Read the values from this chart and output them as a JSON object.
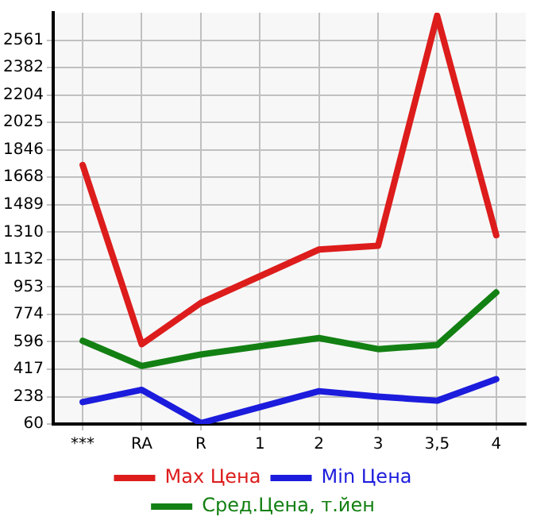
{
  "chart_data": {
    "type": "line",
    "categories": [
      "***",
      "RA",
      "R",
      "1",
      "2",
      "3",
      "3,5",
      "4"
    ],
    "series": [
      {
        "name": "Max Цена",
        "color": "#dd1c1c",
        "values": [
          1748,
          580,
          849,
          null,
          1197,
          1221,
          2721,
          1290
        ]
      },
      {
        "name": "Min Цена",
        "color": "#1c1cdd",
        "values": [
          203,
          283,
          66,
          null,
          274,
          239,
          212,
          352
        ]
      },
      {
        "name": "Сред.Цена, т.йен",
        "color": "#138013",
        "values": [
          602,
          438,
          513,
          null,
          620,
          548,
          575,
          917
        ]
      }
    ],
    "ylim": [
      60,
      2740
    ],
    "yticks": [
      60,
      238,
      417,
      596,
      774,
      953,
      1132,
      1310,
      1489,
      1668,
      1846,
      2025,
      2204,
      2382,
      2561
    ],
    "grid": true,
    "legend": "bottom",
    "marker": "none",
    "line_style": "solid"
  }
}
